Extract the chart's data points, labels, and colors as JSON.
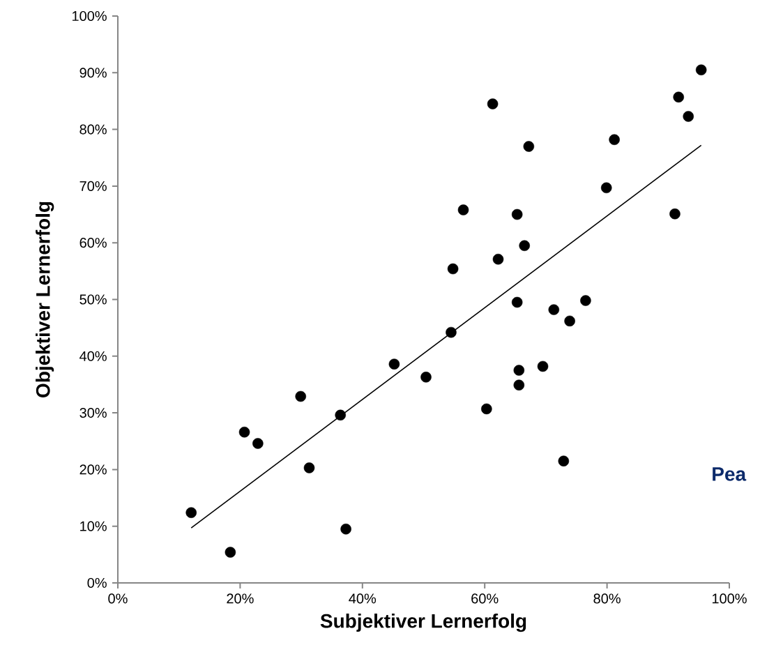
{
  "chart_data": {
    "type": "scatter",
    "xlabel": "Subjektiver Lernerfolg",
    "ylabel": "Objektiver Lernerfolg",
    "annotations": [
      "Pea"
    ],
    "xlim": [
      0,
      100
    ],
    "ylim": [
      0,
      100
    ],
    "xticks": [
      {
        "value": 0,
        "label": "0%"
      },
      {
        "value": 20,
        "label": "20%"
      },
      {
        "value": 40,
        "label": "40%"
      },
      {
        "value": 60,
        "label": "60%"
      },
      {
        "value": 80,
        "label": "80%"
      },
      {
        "value": 100,
        "label": "100%"
      }
    ],
    "yticks": [
      {
        "value": 0,
        "label": "0%"
      },
      {
        "value": 10,
        "label": "10%"
      },
      {
        "value": 20,
        "label": "20%"
      },
      {
        "value": 30,
        "label": "30%"
      },
      {
        "value": 40,
        "label": "40%"
      },
      {
        "value": 50,
        "label": "50%"
      },
      {
        "value": 60,
        "label": "60%"
      },
      {
        "value": 70,
        "label": "70%"
      },
      {
        "value": 80,
        "label": "80%"
      },
      {
        "value": 90,
        "label": "90%"
      },
      {
        "value": 100,
        "label": "100%"
      }
    ],
    "grid": false,
    "legend": false,
    "marker": "circle",
    "series": [
      {
        "color": "#000000",
        "x": [
          12.0,
          18.4,
          20.7,
          22.9,
          29.9,
          31.3,
          36.4,
          37.3,
          45.2,
          50.4,
          54.5,
          54.8,
          56.5,
          60.3,
          61.3,
          62.2,
          65.3,
          65.3,
          65.6,
          65.6,
          66.5,
          67.2,
          69.5,
          71.3,
          72.9,
          73.9,
          76.5,
          79.9,
          81.2,
          91.1,
          91.7,
          93.3,
          95.4
        ],
        "values": [
          12.4,
          5.4,
          26.6,
          24.6,
          32.9,
          20.3,
          29.6,
          9.5,
          38.6,
          36.3,
          44.2,
          55.4,
          65.8,
          30.7,
          84.5,
          57.1,
          65.0,
          49.5,
          37.5,
          34.9,
          59.5,
          77.0,
          38.2,
          48.2,
          21.5,
          46.2,
          49.8,
          69.7,
          78.2,
          65.1,
          85.7,
          82.3,
          90.5
        ]
      },
      {
        "type": "line",
        "color": "#000000",
        "marker": "none",
        "x": [
          12.0,
          95.4
        ],
        "values": [
          9.7,
          77.2
        ]
      }
    ]
  }
}
